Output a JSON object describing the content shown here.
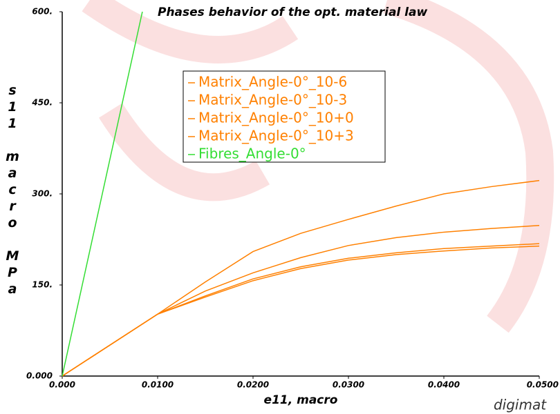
{
  "chart_data": {
    "type": "line",
    "title": "Phases behavior of the opt. material law",
    "xlabel": "e11, macro",
    "ylabel": "s11 macro MPa",
    "logo": "digimat",
    "x": [
      0,
      0.005,
      0.01,
      0.015,
      0.02,
      0.025,
      0.03,
      0.035,
      0.04,
      0.045,
      0.05
    ],
    "series": [
      {
        "name": "Matrix_Angle-0°_10-6",
        "color": "#ff8000",
        "values": [
          0,
          51,
          102,
          130,
          157,
          177,
          191,
          200,
          206,
          211,
          214
        ]
      },
      {
        "name": "Matrix_Angle-0°_10-3",
        "color": "#ff8000",
        "values": [
          0,
          51,
          102,
          132,
          160,
          180,
          194,
          203,
          210,
          214,
          218
        ]
      },
      {
        "name": "Matrix_Angle-0°_10+0",
        "color": "#ff8000",
        "values": [
          0,
          51,
          102,
          140,
          170,
          195,
          215,
          228,
          237,
          243,
          248
        ]
      },
      {
        "name": "Matrix_Angle-0°_10+3",
        "color": "#ff8000",
        "values": [
          0,
          51,
          102,
          155,
          205,
          235,
          258,
          280,
          300,
          312,
          322
        ]
      },
      {
        "name": "Fibres_Angle-0°",
        "color": "#33dd33",
        "x": [
          0,
          0.0084
        ],
        "values": [
          0,
          600
        ]
      }
    ],
    "xlim": [
      0,
      0.05
    ],
    "ylim": [
      0,
      600
    ],
    "xticks": [
      {
        "value": 0,
        "label": "0.000"
      },
      {
        "value": 0.01,
        "label": "0.0100"
      },
      {
        "value": 0.02,
        "label": "0.0200"
      },
      {
        "value": 0.03,
        "label": "0.0300"
      },
      {
        "value": 0.04,
        "label": "0.0400"
      },
      {
        "value": 0.05,
        "label": "0.0500"
      }
    ],
    "yticks": [
      {
        "value": 0,
        "label": "0.000"
      },
      {
        "value": 150,
        "label": "150."
      },
      {
        "value": 300,
        "label": "300."
      },
      {
        "value": 450,
        "label": "450."
      },
      {
        "value": 600,
        "label": "600."
      }
    ],
    "grid": false
  }
}
